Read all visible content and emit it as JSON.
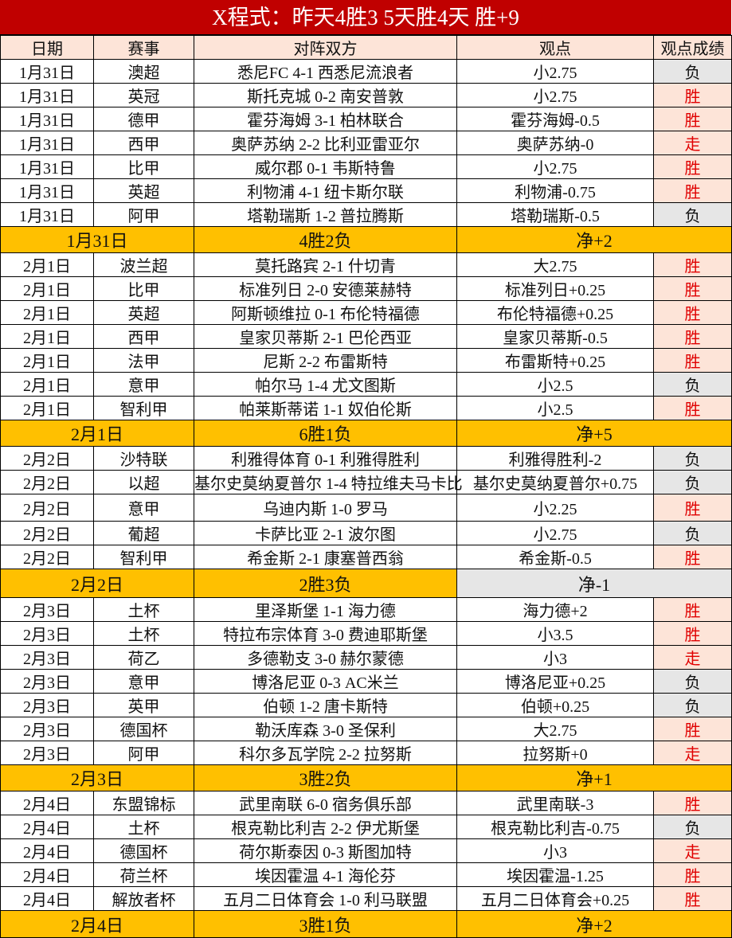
{
  "title": "X程式：昨天4胜3 5天胜4天 胜+9",
  "headers": [
    "日期",
    "赛事",
    "对阵双方",
    "观点",
    "观点成绩"
  ],
  "colors": {
    "title_bg": "#c00000",
    "header_bg": "#fde4d8",
    "summary_bg": "#ffc000",
    "win_text": "#e00000",
    "loss_bg": "#e6e6e6"
  },
  "groups": [
    {
      "matches": [
        [
          "1月31日",
          "澳超",
          "悉尼FC 4-1 西悉尼流浪者",
          "小2.75",
          "负"
        ],
        [
          "1月31日",
          "英冠",
          "斯托克城 0-2 南安普敦",
          "小2.75",
          "胜"
        ],
        [
          "1月31日",
          "德甲",
          "霍芬海姆 3-1 柏林联合",
          "霍芬海姆-0.5",
          "胜"
        ],
        [
          "1月31日",
          "西甲",
          "奥萨苏纳 2-2 比利亚雷亚尔",
          "奥萨苏纳-0",
          "走"
        ],
        [
          "1月31日",
          "比甲",
          "威尔郡 0-1 韦斯特鲁",
          "小2.75",
          "胜"
        ],
        [
          "1月31日",
          "英超",
          "利物浦 4-1 纽卡斯尔联",
          "利物浦-0.75",
          "胜"
        ],
        [
          "1月31日",
          "阿甲",
          "塔勒瑞斯 1-2 普拉腾斯",
          "塔勒瑞斯-0.5",
          "负"
        ]
      ],
      "summary": {
        "date": "1月31日",
        "record": "4胜2负",
        "net": "净+2"
      }
    },
    {
      "matches": [
        [
          "2月1日",
          "波兰超",
          "莫托路宾 2-1 什切青",
          "大2.75",
          "胜"
        ],
        [
          "2月1日",
          "比甲",
          "标准列日 2-0 安德莱赫特",
          "标准列日+0.25",
          "胜"
        ],
        [
          "2月1日",
          "英超",
          "阿斯顿维拉 0-1 布伦特福德",
          "布伦特福德+0.25",
          "胜"
        ],
        [
          "2月1日",
          "西甲",
          "皇家贝蒂斯 2-1 巴伦西亚",
          "皇家贝蒂斯-0.5",
          "胜"
        ],
        [
          "2月1日",
          "法甲",
          "尼斯 2-2 布雷斯特",
          "布雷斯特+0.25",
          "胜"
        ],
        [
          "2月1日",
          "意甲",
          "帕尔马 1-4 尤文图斯",
          "小2.5",
          "负"
        ],
        [
          "2月1日",
          "智利甲",
          "帕莱斯蒂诺 1-1 奴伯伦斯",
          "小2.5",
          "胜"
        ]
      ],
      "summary": {
        "date": "2月1日",
        "record": "6胜1负",
        "net": "净+5"
      }
    },
    {
      "matches": [
        [
          "2月2日",
          "沙特联",
          "利雅得体育 0-1 利雅得胜利",
          "利雅得胜利-2",
          "负"
        ],
        [
          "2月2日",
          "以超",
          "基尔史莫纳夏普尔 1-4 特拉维夫马卡比",
          "基尔史莫纳夏普尔+0.75",
          "负"
        ],
        [
          "2月2日",
          "意甲",
          "乌迪内斯 1-0 罗马",
          "小2.25",
          "胜"
        ],
        [
          "2月2日",
          "葡超",
          "卡萨比亚 2-1 波尔图",
          "小2.75",
          "负"
        ],
        [
          "2月2日",
          "智利甲",
          "希金斯 2-1 康塞普西翁",
          "希金斯-0.5",
          "胜"
        ]
      ],
      "summary": {
        "date": "2月2日",
        "record": "2胜3负",
        "net": "净-1"
      }
    },
    {
      "matches": [
        [
          "2月3日",
          "土杯",
          "里泽斯堡 1-1 海力德",
          "海力德+2",
          "胜"
        ],
        [
          "2月3日",
          "土杯",
          "特拉布宗体育 3-0 费迪耶斯堡",
          "小3.5",
          "胜"
        ],
        [
          "2月3日",
          "荷乙",
          "多德勒支 3-0 赫尔蒙德",
          "小3",
          "走"
        ],
        [
          "2月3日",
          "意甲",
          "博洛尼亚 0-3 AC米兰",
          "博洛尼亚+0.25",
          "负"
        ],
        [
          "2月3日",
          "英甲",
          "伯顿 1-2 唐卡斯特",
          "伯顿+0.25",
          "负"
        ],
        [
          "2月3日",
          "德国杯",
          "勒沃库森 3-0 圣保利",
          "大2.75",
          "胜"
        ],
        [
          "2月3日",
          "阿甲",
          "科尔多瓦学院 2-2 拉努斯",
          "拉努斯+0",
          "走"
        ]
      ],
      "summary": {
        "date": "2月3日",
        "record": "3胜2负",
        "net": "净+1"
      }
    },
    {
      "matches": [
        [
          "2月4日",
          "东盟锦标",
          "武里南联 6-0 宿务俱乐部",
          "武里南联-3",
          "胜"
        ],
        [
          "2月4日",
          "土杯",
          "根克勒比利吉 2-2 伊尤斯堡",
          "根克勒比利吉-0.75",
          "负"
        ],
        [
          "2月4日",
          "德国杯",
          "荷尔斯泰因 0-3 斯图加特",
          "小3",
          "走"
        ],
        [
          "2月4日",
          "荷兰杯",
          "埃因霍温 4-1 海伦芬",
          "埃因霍温-1.25",
          "胜"
        ],
        [
          "2月4日",
          "解放者杯",
          "五月二日体育会 1-0 利马联盟",
          "五月二日体育会+0.25",
          "胜"
        ]
      ],
      "summary": {
        "date": "2月4日",
        "record": "3胜1负",
        "net": "净+2"
      }
    }
  ]
}
